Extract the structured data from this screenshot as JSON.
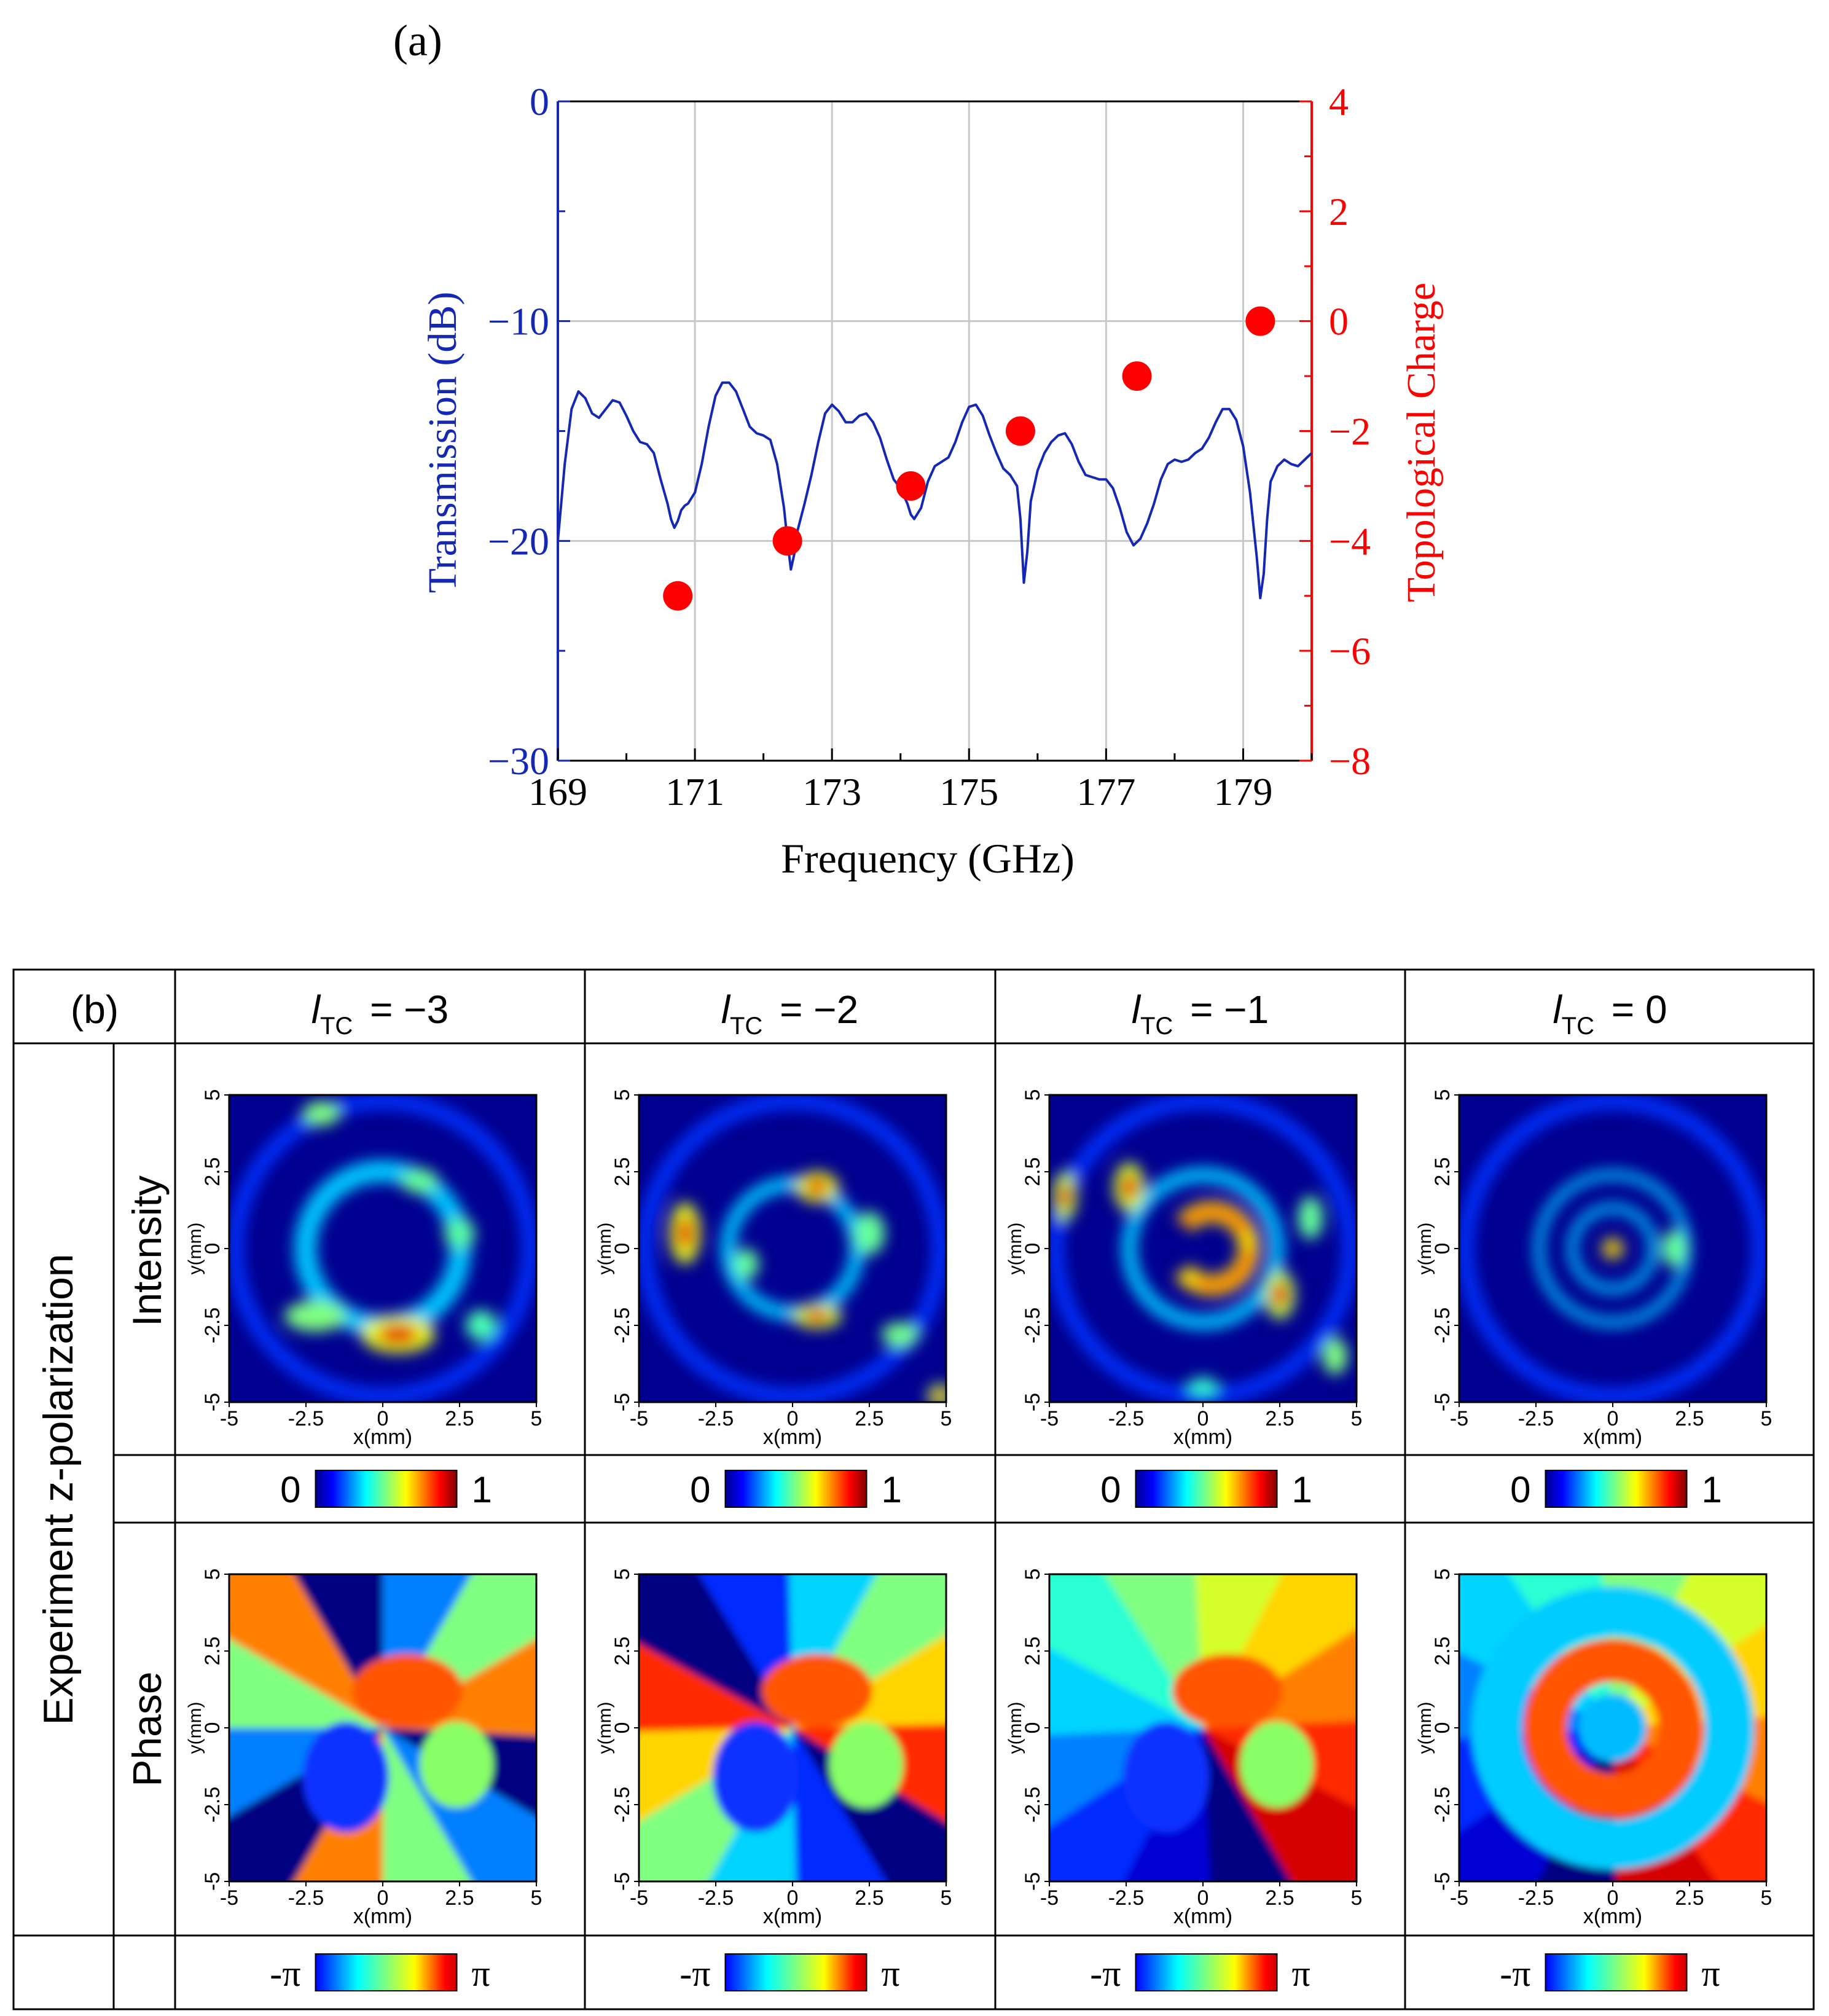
{
  "panel_a": {
    "label": "(a)",
    "colors": {
      "left": "#1428b4",
      "right": "#ff0000",
      "grid": "#c8c8c8"
    },
    "chart_data": {
      "type": "line",
      "title": "",
      "xlabel": "Frequency (GHz)",
      "ylabel_left": "Transmission (dB)",
      "ylabel_right": "Topological Charge",
      "xlim": [
        169,
        180
      ],
      "ylim_left": [
        -30,
        0
      ],
      "ylim_right": [
        -8,
        4
      ],
      "x_ticks": [
        169,
        171,
        173,
        175,
        177,
        179
      ],
      "x_tick_labels": [
        "169",
        "171",
        "173",
        "175",
        "177",
        "179"
      ],
      "y_left_ticks": [
        0,
        -10,
        -20,
        -30
      ],
      "y_left_tick_labels": [
        "0",
        "−10",
        "−20",
        "−30"
      ],
      "y_right_ticks": [
        4,
        2,
        0,
        -2,
        -4,
        -6,
        -8
      ],
      "y_right_tick_labels": [
        "4",
        "2",
        "0",
        "−2",
        "−4",
        "−6",
        "−8"
      ],
      "grid": true,
      "series": [
        {
          "name": "Transmission (dB)",
          "axis": "left",
          "type": "line",
          "x": [
            169.0,
            169.1,
            169.2,
            169.3,
            169.4,
            169.5,
            169.6,
            169.7,
            169.8,
            169.9,
            170.0,
            170.1,
            170.2,
            170.3,
            170.4,
            170.5,
            170.6,
            170.65,
            170.7,
            170.75,
            170.8,
            170.85,
            170.9,
            171.0,
            171.1,
            171.2,
            171.3,
            171.4,
            171.5,
            171.6,
            171.7,
            171.8,
            171.9,
            172.0,
            172.1,
            172.2,
            172.3,
            172.35,
            172.4,
            172.45,
            172.5,
            172.6,
            172.7,
            172.8,
            172.9,
            173.0,
            173.1,
            173.2,
            173.3,
            173.4,
            173.5,
            173.6,
            173.7,
            173.8,
            173.9,
            174.0,
            174.1,
            174.15,
            174.2,
            174.3,
            174.4,
            174.5,
            174.6,
            174.7,
            174.8,
            174.9,
            175.0,
            175.1,
            175.2,
            175.3,
            175.4,
            175.5,
            175.6,
            175.7,
            175.75,
            175.8,
            175.85,
            175.9,
            176.0,
            176.1,
            176.2,
            176.3,
            176.4,
            176.5,
            176.6,
            176.7,
            176.8,
            176.9,
            177.0,
            177.1,
            177.2,
            177.3,
            177.4,
            177.5,
            177.6,
            177.7,
            177.8,
            177.9,
            178.0,
            178.1,
            178.2,
            178.3,
            178.4,
            178.5,
            178.6,
            178.7,
            178.8,
            178.9,
            179.0,
            179.1,
            179.2,
            179.25,
            179.3,
            179.35,
            179.4,
            179.5,
            179.6,
            179.7,
            179.8,
            179.9,
            180.0
          ],
          "y": [
            -20.0,
            -16.5,
            -14.0,
            -13.2,
            -13.5,
            -14.2,
            -14.4,
            -14.0,
            -13.6,
            -13.7,
            -14.3,
            -15.0,
            -15.5,
            -15.6,
            -16.0,
            -17.2,
            -18.3,
            -19.0,
            -19.4,
            -19.1,
            -18.6,
            -18.4,
            -18.3,
            -17.8,
            -16.5,
            -14.8,
            -13.4,
            -12.8,
            -12.8,
            -13.2,
            -14.0,
            -14.8,
            -15.1,
            -15.2,
            -15.4,
            -16.5,
            -18.5,
            -20.0,
            -21.3,
            -20.6,
            -19.5,
            -18.3,
            -17.0,
            -15.5,
            -14.2,
            -13.8,
            -14.1,
            -14.6,
            -14.6,
            -14.3,
            -14.2,
            -14.6,
            -15.3,
            -16.3,
            -17.2,
            -17.6,
            -18.3,
            -18.8,
            -19.0,
            -18.5,
            -17.3,
            -16.6,
            -16.4,
            -16.2,
            -15.5,
            -14.6,
            -13.9,
            -13.8,
            -14.3,
            -15.2,
            -16.0,
            -16.7,
            -17.0,
            -17.5,
            -19.0,
            -21.9,
            -20.5,
            -18.2,
            -16.8,
            -16.0,
            -15.5,
            -15.2,
            -15.1,
            -15.6,
            -16.4,
            -17.0,
            -17.1,
            -17.2,
            -17.2,
            -17.6,
            -18.5,
            -19.6,
            -20.2,
            -19.9,
            -19.2,
            -18.3,
            -17.2,
            -16.5,
            -16.3,
            -16.4,
            -16.3,
            -16.0,
            -15.8,
            -15.3,
            -14.6,
            -14.0,
            -14.0,
            -14.5,
            -15.7,
            -17.8,
            -20.8,
            -22.6,
            -21.5,
            -19.0,
            -17.3,
            -16.6,
            -16.3,
            -16.5,
            -16.6,
            -16.3,
            -16.0
          ]
        },
        {
          "name": "Topological Charge",
          "axis": "right",
          "type": "scatter",
          "x": [
            170.75,
            172.35,
            174.15,
            175.75,
            177.45,
            179.25
          ],
          "y": [
            -5,
            -4,
            -3,
            -2,
            -1,
            0
          ]
        }
      ]
    }
  },
  "panel_b": {
    "label": "(b)",
    "group_label": "Experiment z-polarization",
    "row_labels": {
      "intensity": "Intensity",
      "phase": "Phase"
    },
    "columns": [
      {
        "l": "l",
        "sub": "TC",
        "value": "= −3"
      },
      {
        "l": "l",
        "sub": "TC",
        "value": "= −2"
      },
      {
        "l": "l",
        "sub": "TC",
        "value": "= −1"
      },
      {
        "l": "l",
        "sub": "TC",
        "value": "= 0"
      }
    ],
    "map_axis": {
      "xlabel": "x(mm)",
      "ylabel": "y(mm)",
      "x_ticks": [
        "-5",
        "-2.5",
        "0",
        "2.5",
        "5"
      ],
      "y_ticks": [
        "5",
        "2.5",
        "0",
        "-2.5",
        "-5"
      ]
    },
    "colorbars": {
      "intensity": {
        "min": "0",
        "max": "1"
      },
      "phase": {
        "min": "-π",
        "max": "π"
      }
    }
  }
}
